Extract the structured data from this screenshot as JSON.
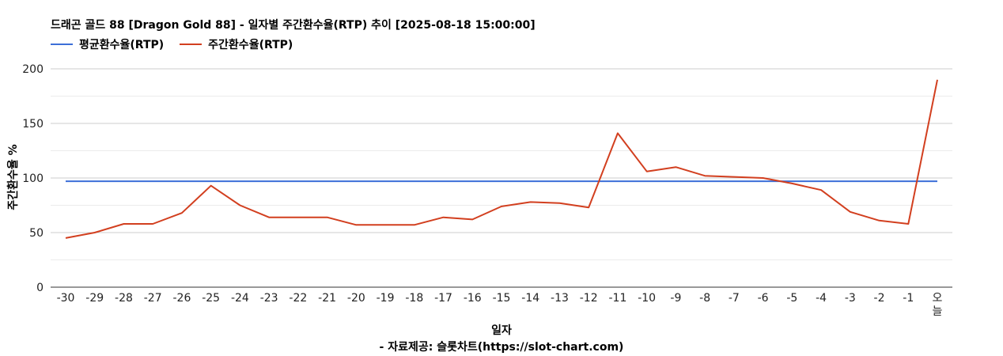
{
  "chart_data": {
    "type": "line",
    "title": "드래곤 골드 88 [Dragon Gold 88] - 일자별 주간환수율(RTP) 추이 [2025-08-18 15:00:00]",
    "xlabel": "일자",
    "ylabel": "주간환수율 %",
    "footer": "- 자료제공: 슬롯차트(https://slot-chart.com)",
    "categories": [
      "-30",
      "-29",
      "-28",
      "-27",
      "-26",
      "-25",
      "-24",
      "-23",
      "-22",
      "-21",
      "-20",
      "-19",
      "-18",
      "-17",
      "-16",
      "-15",
      "-14",
      "-13",
      "-12",
      "-11",
      "-10",
      "-9",
      "-8",
      "-7",
      "-6",
      "-5",
      "-4",
      "-3",
      "-2",
      "-1",
      "오늘"
    ],
    "ylim": [
      0,
      200
    ],
    "yticks": [
      0,
      50,
      100,
      150,
      200
    ],
    "grid": true,
    "legend_position": "top-left",
    "series": [
      {
        "name": "평균환수율(RTP)",
        "color": "#3c6fd8",
        "values": [
          97,
          97,
          97,
          97,
          97,
          97,
          97,
          97,
          97,
          97,
          97,
          97,
          97,
          97,
          97,
          97,
          97,
          97,
          97,
          97,
          97,
          97,
          97,
          97,
          97,
          97,
          97,
          97,
          97,
          97,
          97
        ]
      },
      {
        "name": "주간환수율(RTP)",
        "color": "#d23f1f",
        "values": [
          45,
          50,
          58,
          58,
          68,
          93,
          75,
          64,
          64,
          64,
          57,
          57,
          57,
          64,
          62,
          74,
          78,
          77,
          73,
          141,
          106,
          110,
          102,
          101,
          100,
          95,
          89,
          69,
          61,
          58,
          190
        ]
      }
    ]
  }
}
